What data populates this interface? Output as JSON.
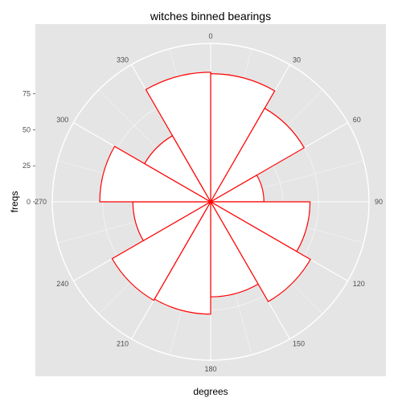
{
  "chart_data": {
    "type": "bar",
    "coord": "polar",
    "title": "witches binned bearings",
    "xlabel": "degrees",
    "ylabel": "freqs",
    "bin_width_degrees": 30,
    "categories": [
      15,
      45,
      75,
      105,
      135,
      165,
      195,
      225,
      255,
      285,
      315,
      345
    ],
    "values": [
      89,
      75,
      37,
      69,
      80,
      66,
      78,
      79,
      54,
      77,
      53,
      90
    ],
    "angle_ticks": [
      "0",
      "30",
      "60",
      "90",
      "120",
      "150",
      "180",
      "210",
      "240",
      "270",
      "300",
      "330"
    ],
    "radial_ticks": [
      0,
      25,
      50,
      75
    ],
    "radial_tick_labels": [
      "0",
      "25",
      "50",
      "75"
    ],
    "rmax": 110,
    "grid": true,
    "colors": {
      "panel": "#e5e5e5",
      "grid": "#f5f5f5",
      "bar_fill": "#ffffff",
      "bar_stroke": "#ff0000"
    }
  }
}
